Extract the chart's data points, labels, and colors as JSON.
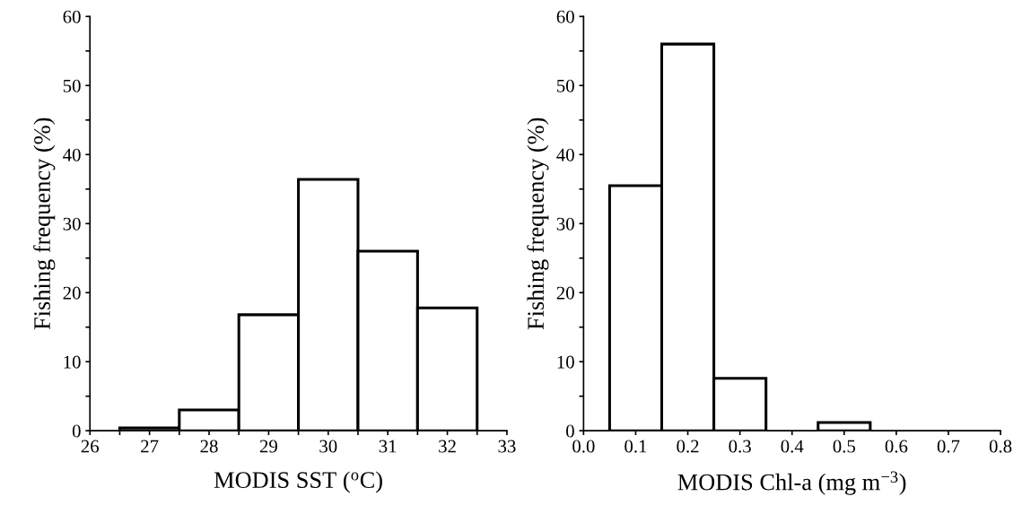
{
  "chart_data": [
    {
      "type": "histogram",
      "xlabel": "MODIS SST ($^{o}$C)",
      "ylabel": "Fishing frequency (%)",
      "bins": [
        26.5,
        27.5,
        28.5,
        29.5,
        30.5,
        31.5,
        32.5
      ],
      "values": [
        0.4,
        3,
        16.8,
        36.4,
        26,
        17.8
      ],
      "color": "#ffffff",
      "xlim": [
        26,
        33
      ],
      "xticks": [
        26,
        {
          "value": 26.5,
          "label": null
        },
        27,
        {
          "value": 27.5,
          "label": null
        },
        28,
        {
          "value": 28.5,
          "label": null
        },
        29,
        {
          "value": 29.5,
          "label": null
        },
        30,
        {
          "value": 30.5,
          "label": null
        },
        31,
        {
          "value": 31.5,
          "label": null
        },
        32,
        {
          "value": 32.5,
          "label": null
        },
        33
      ],
      "ylim": [
        0,
        60
      ],
      "yticks": [
        0,
        {
          "value": 5,
          "label": null
        },
        10,
        {
          "value": 15,
          "label": null
        },
        20,
        {
          "value": 25,
          "label": null
        },
        30,
        {
          "value": 35,
          "label": null
        },
        40,
        {
          "value": 45,
          "label": null
        },
        50,
        {
          "value": 55,
          "label": null
        },
        60
      ],
      "grid": false,
      "legend": false
    },
    {
      "type": "histogram",
      "xlabel": "MODIS Chl-a (mg m$^{−3}$)",
      "ylabel": "Fishing frequency (%)",
      "bins": [
        0.05,
        0.15,
        0.25,
        0.35,
        0.45,
        0.55
      ],
      "values": [
        35.5,
        56,
        7.6,
        0,
        1.2
      ],
      "color": "#ffffff",
      "xlim": [
        0,
        0.8
      ],
      "xticks": [
        {
          "value": 0,
          "label": "0.0"
        },
        0.1,
        0.2,
        0.3,
        0.4,
        0.5,
        0.6,
        0.7,
        0.8
      ],
      "ylim": [
        0,
        60
      ],
      "yticks": [
        0,
        {
          "value": 5,
          "label": null
        },
        10,
        {
          "value": 15,
          "label": null
        },
        20,
        {
          "value": 25,
          "label": null
        },
        30,
        {
          "value": 35,
          "label": null
        },
        40,
        {
          "value": 45,
          "label": null
        },
        50,
        {
          "value": 55,
          "label": null
        },
        60
      ],
      "grid": false,
      "legend": false
    }
  ]
}
